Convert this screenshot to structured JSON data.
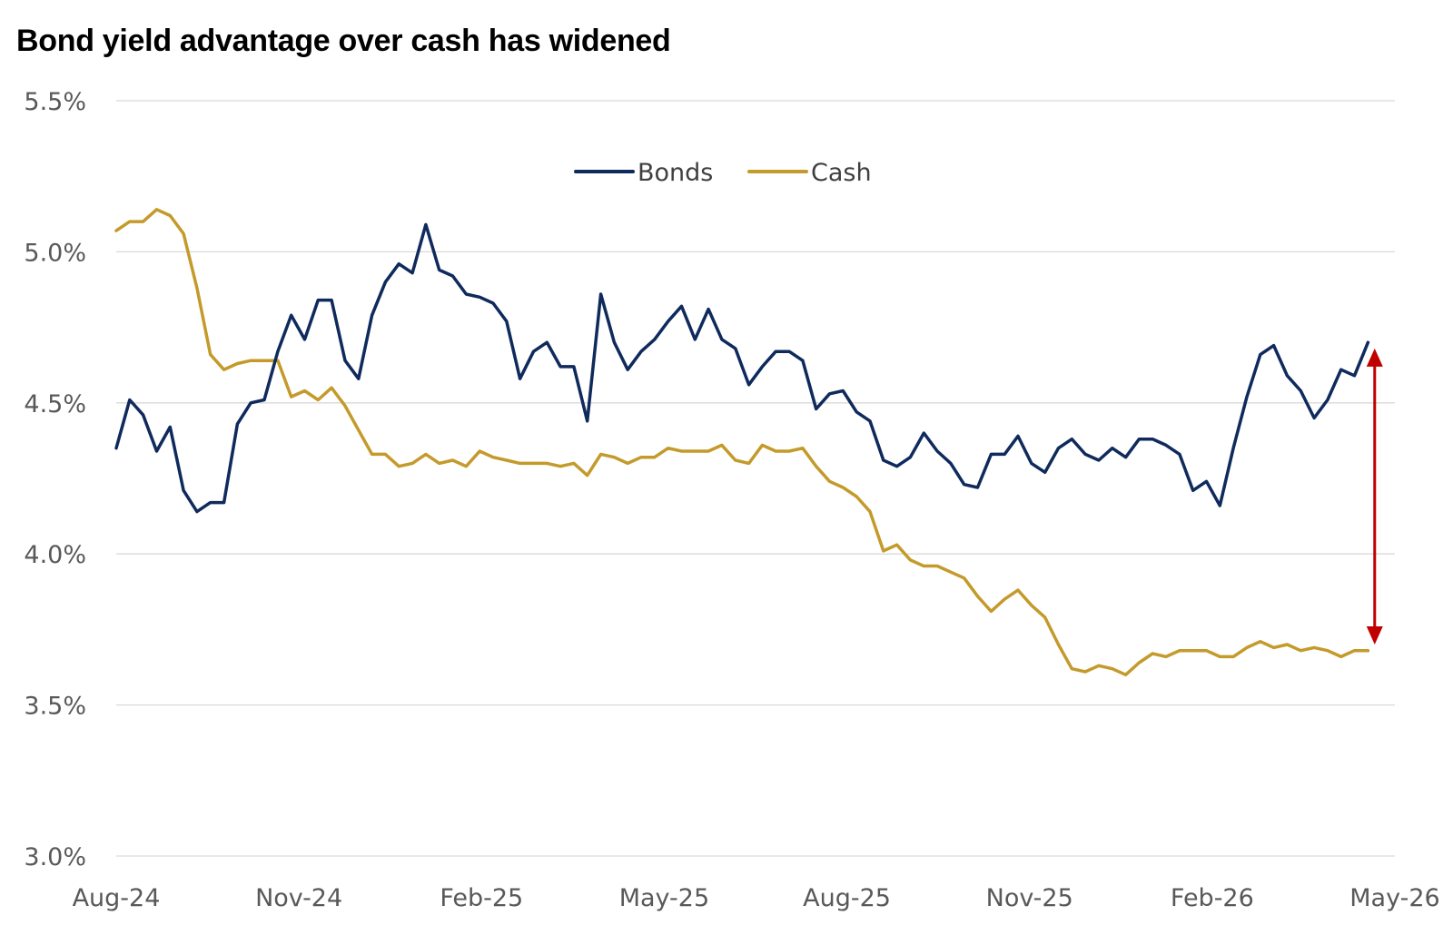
{
  "chart_data": {
    "type": "line",
    "title": "Bond yield advantage over cash has widened",
    "xlabel": "",
    "ylabel": "",
    "ylim": [
      3.0,
      5.5
    ],
    "y_ticks": [
      "3.0%",
      "3.5%",
      "4.0%",
      "4.5%",
      "5.0%",
      "5.5%"
    ],
    "y_tick_values": [
      3.0,
      3.5,
      4.0,
      4.5,
      5.0,
      5.5
    ],
    "x_ticks": [
      "Aug-24",
      "Nov-24",
      "Feb-25",
      "May-25",
      "Aug-25",
      "Nov-25",
      "Feb-26",
      "May-26"
    ],
    "grid": true,
    "legend": "top-center",
    "x_range_weeks": [
      0,
      95
    ],
    "series": [
      {
        "name": "Bonds",
        "color": "#0f2a5c",
        "values": [
          4.35,
          4.51,
          4.46,
          4.34,
          4.42,
          4.21,
          4.14,
          4.17,
          4.17,
          4.43,
          4.5,
          4.51,
          4.67,
          4.79,
          4.71,
          4.84,
          4.84,
          4.64,
          4.58,
          4.79,
          4.9,
          4.96,
          4.93,
          5.09,
          4.94,
          4.92,
          4.86,
          4.85,
          4.83,
          4.77,
          4.58,
          4.67,
          4.7,
          4.62,
          4.62,
          4.44,
          4.86,
          4.7,
          4.61,
          4.67,
          4.71,
          4.77,
          4.82,
          4.71,
          4.81,
          4.71,
          4.68,
          4.56,
          4.62,
          4.67,
          4.67,
          4.64,
          4.48,
          4.53,
          4.54,
          4.47,
          4.44,
          4.31,
          4.29,
          4.32,
          4.4,
          4.34,
          4.3,
          4.23,
          4.22,
          4.33,
          4.33,
          4.39,
          4.3,
          4.27,
          4.35,
          4.38,
          4.33,
          4.31,
          4.35,
          4.32,
          4.38,
          4.38,
          4.36,
          4.33,
          4.21,
          4.24,
          4.16,
          4.35,
          4.52,
          4.66,
          4.69,
          4.59,
          4.54,
          4.45,
          4.51,
          4.61,
          4.59,
          4.7
        ]
      },
      {
        "name": "Cash",
        "color": "#c49a2b",
        "values": [
          5.07,
          5.1,
          5.1,
          5.14,
          5.12,
          5.06,
          4.88,
          4.66,
          4.61,
          4.63,
          4.64,
          4.64,
          4.64,
          4.52,
          4.54,
          4.51,
          4.55,
          4.49,
          4.41,
          4.33,
          4.33,
          4.29,
          4.3,
          4.33,
          4.3,
          4.31,
          4.29,
          4.34,
          4.32,
          4.31,
          4.3,
          4.3,
          4.3,
          4.29,
          4.3,
          4.26,
          4.33,
          4.32,
          4.3,
          4.32,
          4.32,
          4.35,
          4.34,
          4.34,
          4.34,
          4.36,
          4.31,
          4.3,
          4.36,
          4.34,
          4.34,
          4.35,
          4.29,
          4.24,
          4.22,
          4.19,
          4.14,
          4.01,
          4.03,
          3.98,
          3.96,
          3.96,
          3.94,
          3.92,
          3.86,
          3.81,
          3.85,
          3.88,
          3.83,
          3.79,
          3.7,
          3.62,
          3.61,
          3.63,
          3.62,
          3.6,
          3.64,
          3.67,
          3.66,
          3.68,
          3.68,
          3.68,
          3.66,
          3.66,
          3.69,
          3.71,
          3.69,
          3.7,
          3.68,
          3.69,
          3.68,
          3.66,
          3.68,
          3.68
        ]
      }
    ],
    "annotations": [
      {
        "type": "double-arrow",
        "color": "#c00000",
        "from_value": 4.68,
        "to_value": 3.7,
        "at_week": 93.5
      }
    ]
  }
}
